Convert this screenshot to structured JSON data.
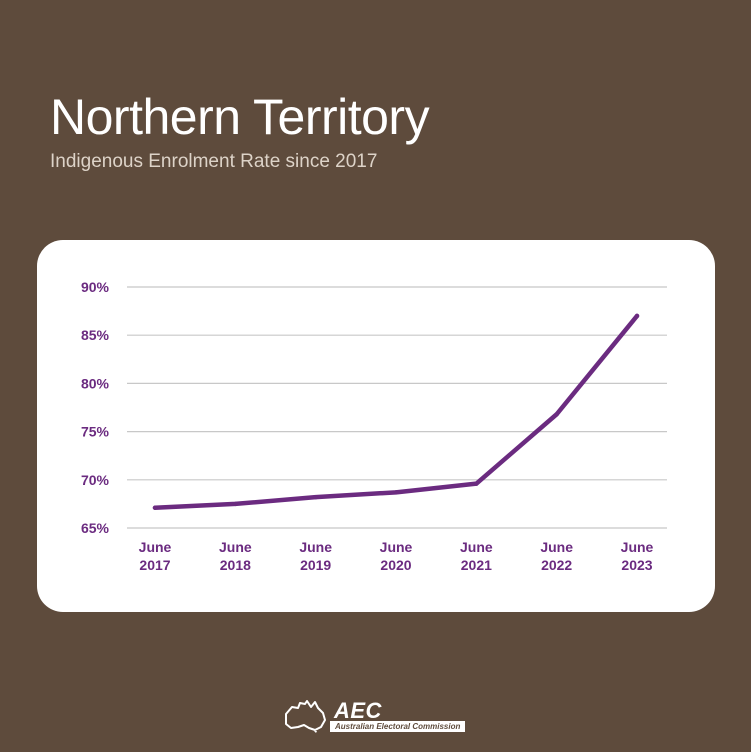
{
  "header": {
    "title": "Northern Territory",
    "subtitle": "Indigenous Enrolment Rate since 2017"
  },
  "footer": {
    "logo_text": "AEC",
    "logo_subtext": "Australian Electoral Commission"
  },
  "colors": {
    "background": "#5e4b3c",
    "card": "#ffffff",
    "line": "#6b2b80",
    "grid": "#c8c8c8"
  },
  "chart_data": {
    "type": "line",
    "title": "Northern Territory",
    "subtitle": "Indigenous Enrolment Rate since 2017",
    "categories": [
      "June 2017",
      "June 2018",
      "June 2019",
      "June 2020",
      "June 2021",
      "June 2022",
      "June 2023"
    ],
    "category_lines": [
      [
        "June",
        "2017"
      ],
      [
        "June",
        "2018"
      ],
      [
        "June",
        "2019"
      ],
      [
        "June",
        "2020"
      ],
      [
        "June",
        "2021"
      ],
      [
        "June",
        "2022"
      ],
      [
        "June",
        "2023"
      ]
    ],
    "values": [
      67.1,
      67.5,
      68.2,
      68.7,
      69.6,
      76.8,
      87.0
    ],
    "ylim": [
      65,
      90
    ],
    "yticks": [
      65,
      70,
      75,
      80,
      85,
      90
    ],
    "ytick_labels": [
      "65%",
      "70%",
      "75%",
      "80%",
      "85%",
      "90%"
    ],
    "xlabel": "",
    "ylabel": "",
    "grid": true,
    "legend": "none"
  }
}
